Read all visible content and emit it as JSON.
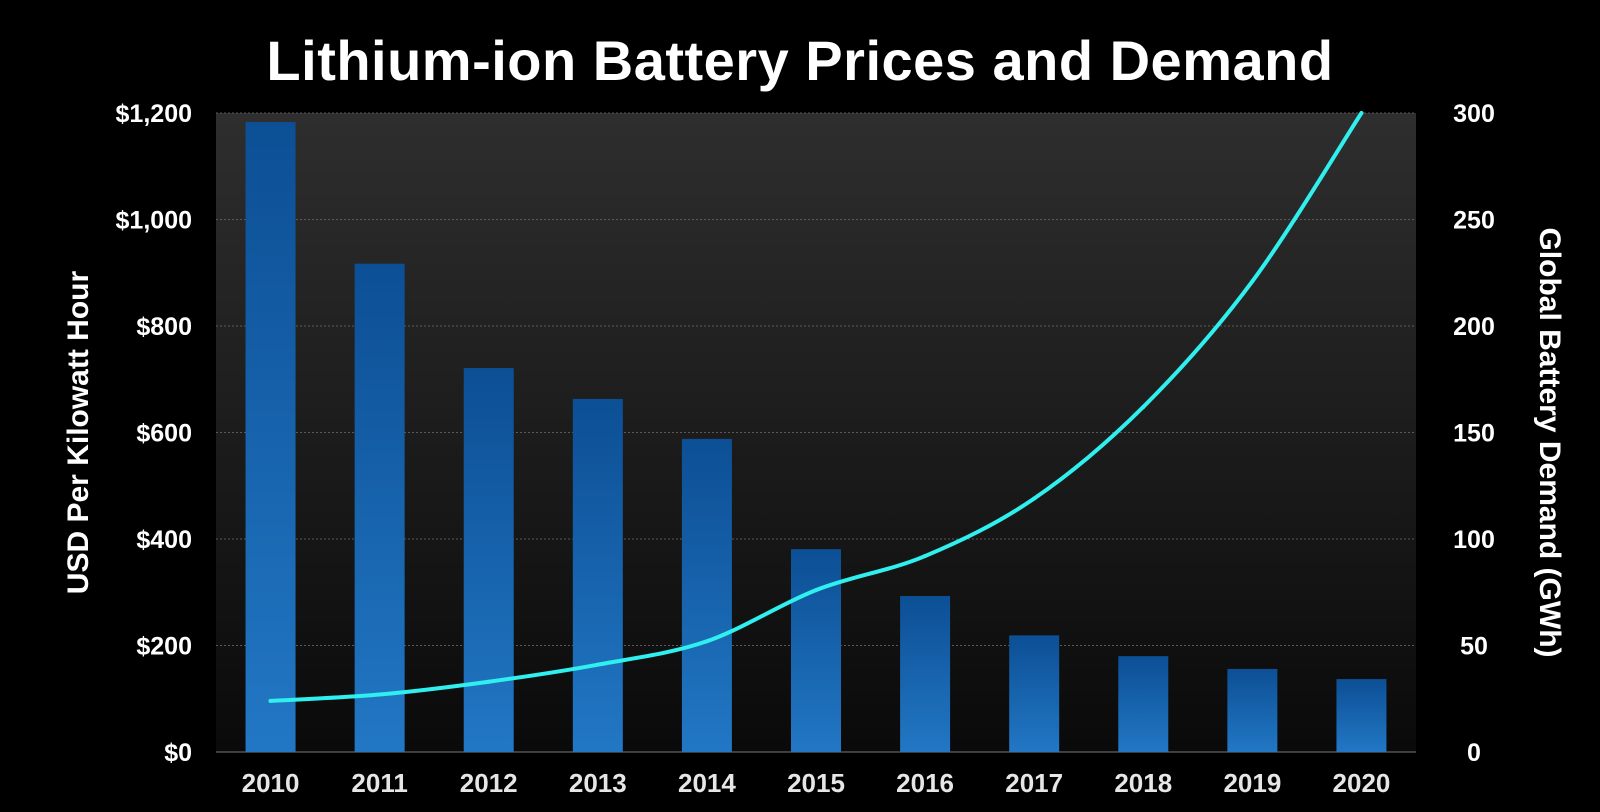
{
  "chart_data": {
    "type": "bar+line",
    "title": "Lithium-ion Battery Prices and Demand",
    "categories": [
      "2010",
      "2011",
      "2012",
      "2013",
      "2014",
      "2015",
      "2016",
      "2017",
      "2018",
      "2019",
      "2020"
    ],
    "series": [
      {
        "kind": "bar",
        "axis": "left",
        "values": [
          1183,
          917,
          721,
          663,
          588,
          381,
          293,
          219,
          180,
          156,
          137
        ],
        "color": "#1a66b0"
      },
      {
        "kind": "line",
        "axis": "right",
        "values": [
          24,
          27,
          33,
          41,
          52,
          76,
          92,
          119,
          162,
          221,
          300
        ],
        "color": "#2ff0ee"
      }
    ],
    "y_left": {
      "label": "USD Per Kilowatt Hour",
      "lim": [
        0,
        1200
      ],
      "ticks": [
        0,
        200,
        400,
        600,
        800,
        1000,
        1200
      ],
      "tick_labels": [
        "$0",
        "$200",
        "$400",
        "$600",
        "$800",
        "$1,000",
        "$1,200"
      ]
    },
    "y_right": {
      "label": "Global Battery Demand (GWh)",
      "lim": [
        0,
        300
      ],
      "ticks": [
        0,
        50,
        100,
        150,
        200,
        250,
        300
      ],
      "tick_labels": [
        "0",
        "50",
        "100",
        "150",
        "200",
        "250",
        "300"
      ]
    },
    "grid": true,
    "colors": {
      "background": "#000000",
      "plot_top": "#2e2e2e",
      "plot_bottom": "#0a0a0a",
      "bar_top": "#0c4f95",
      "bar_bottom": "#2277c4",
      "line": "#2ff0ee",
      "text": "#ffffff"
    }
  }
}
